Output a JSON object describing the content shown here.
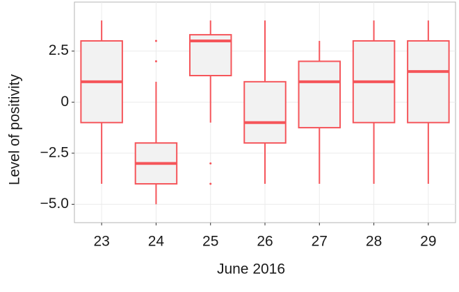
{
  "chart_data": {
    "type": "box",
    "xlabel": "June 2016",
    "ylabel": "Level of positivity",
    "categories": [
      "23",
      "24",
      "25",
      "26",
      "27",
      "28",
      "29"
    ],
    "color": "#f5555a",
    "fill": "#f2f2f2",
    "boxes": [
      {
        "whisker_low": -4,
        "q1": -1,
        "median": 1,
        "q3": 3,
        "whisker_high": 4,
        "outliers": []
      },
      {
        "whisker_low": -5,
        "q1": -4,
        "median": -3,
        "q3": -2,
        "whisker_high": 1,
        "outliers": [
          3,
          2
        ]
      },
      {
        "whisker_low": -1,
        "q1": 1.3,
        "median": 3,
        "q3": 3.3,
        "whisker_high": 4,
        "outliers": [
          -3,
          -4
        ]
      },
      {
        "whisker_low": -4,
        "q1": -2,
        "median": -1,
        "q3": 1,
        "whisker_high": 4,
        "outliers": []
      },
      {
        "whisker_low": -4,
        "q1": -1.25,
        "median": 1,
        "q3": 2,
        "whisker_high": 3,
        "outliers": []
      },
      {
        "whisker_low": -4,
        "q1": -1,
        "median": 1,
        "q3": 3,
        "whisker_high": 4,
        "outliers": []
      },
      {
        "whisker_low": -4,
        "q1": -1,
        "median": 1.5,
        "q3": 3,
        "whisker_high": 4,
        "outliers": []
      }
    ],
    "ylim": [
      -5.9,
      4.9
    ],
    "yticks": [
      2.5,
      0,
      {
        "value": -2.5,
        "label": "−2.5"
      },
      {
        "value": -5,
        "label": "−5.0"
      }
    ],
    "grid": true
  }
}
